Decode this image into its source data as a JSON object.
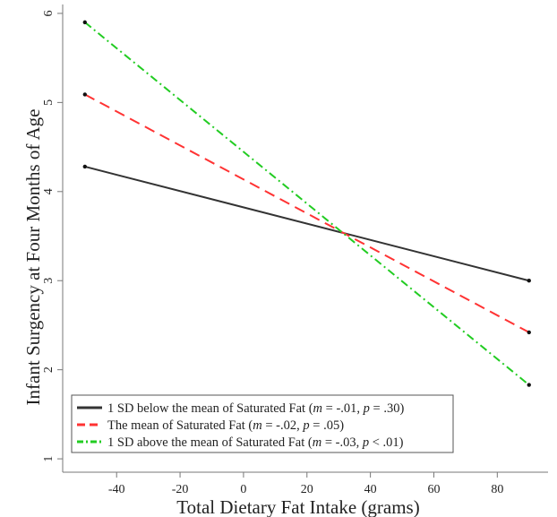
{
  "chart_data": {
    "type": "line",
    "title": "",
    "xlabel": "Total Dietary Fat Intake (grams)",
    "ylabel": "Infant Surgency at Four Months of Age",
    "xlim": [
      -57,
      96
    ],
    "ylim": [
      0.85,
      6.1
    ],
    "xticks": [
      -40,
      -20,
      0,
      20,
      40,
      60,
      80
    ],
    "yticks": [
      1,
      2,
      3,
      4,
      5,
      6
    ],
    "grid": false,
    "legend_position": "bottom-left",
    "series": [
      {
        "name": "1 SD below the mean of Saturated Fat",
        "stat_prefix": " (",
        "m": "-.01",
        "p": ".30",
        "p_op": "=",
        "color": "#333333",
        "dash": "solid",
        "x": [
          -50,
          90
        ],
        "y": [
          4.28,
          3.0
        ]
      },
      {
        "name": "The mean of Saturated Fat",
        "stat_prefix": " (",
        "m": "-.02",
        "p": ".05",
        "p_op": "=",
        "color": "#ff3333",
        "dash": "dashed",
        "x": [
          -50,
          90
        ],
        "y": [
          5.09,
          2.42
        ]
      },
      {
        "name": "1 SD above the mean of Saturated Fat",
        "stat_prefix": " (",
        "m": "-.03",
        "p": ".01",
        "p_op": "<",
        "color": "#22cc22",
        "dash": "dashdot",
        "x": [
          -50,
          90
        ],
        "y": [
          5.9,
          1.83
        ]
      }
    ]
  }
}
